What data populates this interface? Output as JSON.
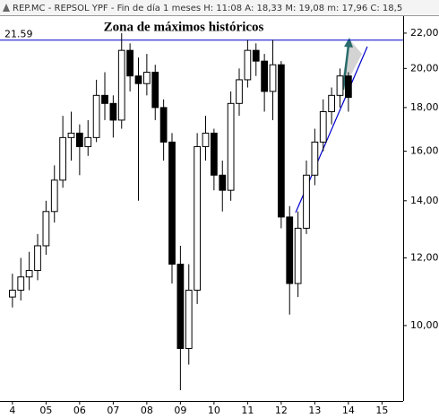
{
  "chart_data": {
    "type": "candlestick",
    "header": "REP.MC - REPSOL YPF - Fin de día 1 meses  H: 11:08  A: 18,33  M: 19,08  m: 17,96  C: 18,5",
    "annotation": "Zona de máximos históricos",
    "log_scale": true,
    "x": [
      4,
      4.25,
      4.5,
      4.75,
      5,
      5.25,
      5.5,
      5.75,
      6,
      6.25,
      6.5,
      6.75,
      7,
      7.25,
      7.5,
      7.75,
      8,
      8.25,
      8.5,
      8.75,
      9,
      9.25,
      9.5,
      9.75,
      10,
      10.25,
      10.5,
      10.75,
      11,
      11.25,
      11.5,
      11.75,
      12,
      12.25,
      12.5,
      12.75,
      13,
      13.25,
      13.5,
      13.75,
      14
    ],
    "open": [
      10.8,
      11.0,
      11.4,
      11.6,
      12.4,
      13.6,
      14.8,
      16.6,
      16.8,
      16.2,
      16.6,
      18.6,
      18.2,
      17.4,
      21.0,
      19.6,
      19.2,
      19.8,
      18.0,
      16.4,
      11.8,
      9.4,
      11.0,
      16.2,
      16.8,
      15.0,
      14.4,
      18.2,
      19.4,
      21.0,
      20.4,
      18.8,
      20.2,
      13.4,
      11.2,
      13.0,
      15.0,
      16.4,
      17.8,
      18.6,
      19.6
    ],
    "high": [
      11.5,
      12.0,
      12.2,
      12.8,
      14.0,
      15.4,
      17.6,
      17.8,
      17.2,
      17.4,
      19.4,
      19.8,
      18.6,
      22.0,
      21.4,
      20.6,
      20.8,
      20.2,
      18.4,
      16.8,
      12.4,
      11.8,
      16.8,
      17.6,
      17.0,
      15.6,
      18.8,
      20.0,
      21.6,
      21.4,
      20.8,
      21.6,
      20.4,
      13.8,
      13.6,
      15.6,
      17.0,
      18.4,
      19.0,
      20.0,
      19.8
    ],
    "low": [
      10.5,
      10.7,
      11.0,
      11.3,
      12.1,
      13.2,
      14.5,
      15.6,
      15.0,
      15.8,
      16.4,
      17.4,
      16.6,
      17.0,
      18.8,
      14.0,
      18.6,
      17.4,
      15.6,
      11.2,
      8.4,
      9.0,
      10.6,
      15.6,
      14.4,
      13.6,
      14.0,
      17.6,
      19.0,
      19.6,
      17.8,
      17.4,
      13.0,
      10.3,
      10.8,
      12.8,
      14.6,
      16.0,
      17.2,
      18.0,
      17.8
    ],
    "close": [
      11.0,
      11.4,
      11.6,
      12.4,
      13.6,
      14.8,
      16.6,
      16.8,
      16.2,
      16.6,
      18.6,
      18.2,
      17.4,
      21.0,
      19.6,
      19.2,
      19.8,
      18.0,
      16.4,
      11.8,
      9.4,
      11.0,
      16.2,
      16.8,
      15.0,
      14.4,
      18.2,
      19.4,
      21.0,
      20.4,
      18.8,
      20.2,
      13.4,
      11.2,
      13.0,
      15.0,
      16.4,
      17.8,
      18.6,
      19.6,
      18.5
    ],
    "up_color": "#ffffff",
    "down_color": "#000000",
    "hline": 21.59,
    "hline_color": "#0000cc",
    "xlim": [
      3.63,
      15.63
    ],
    "xticks": [
      4,
      {
        "value": 5,
        "label": "05"
      },
      {
        "value": 6,
        "label": "06"
      },
      {
        "value": 7,
        "label": "07"
      },
      {
        "value": 8,
        "label": "08"
      },
      {
        "value": 9,
        "label": "09"
      },
      10,
      11,
      12,
      13,
      14,
      15
    ],
    "ylim": [
      8.16,
      23.03
    ],
    "yticks": [
      {
        "value": 10,
        "label": "10,00"
      },
      {
        "value": 12,
        "label": "12,00"
      },
      {
        "value": 14,
        "label": "14,00"
      },
      {
        "value": 16,
        "label": "16,00"
      },
      {
        "value": 18,
        "label": "18,00"
      },
      {
        "value": 20,
        "label": "20,00"
      },
      {
        "value": 22,
        "label": "22,00"
      }
    ]
  }
}
